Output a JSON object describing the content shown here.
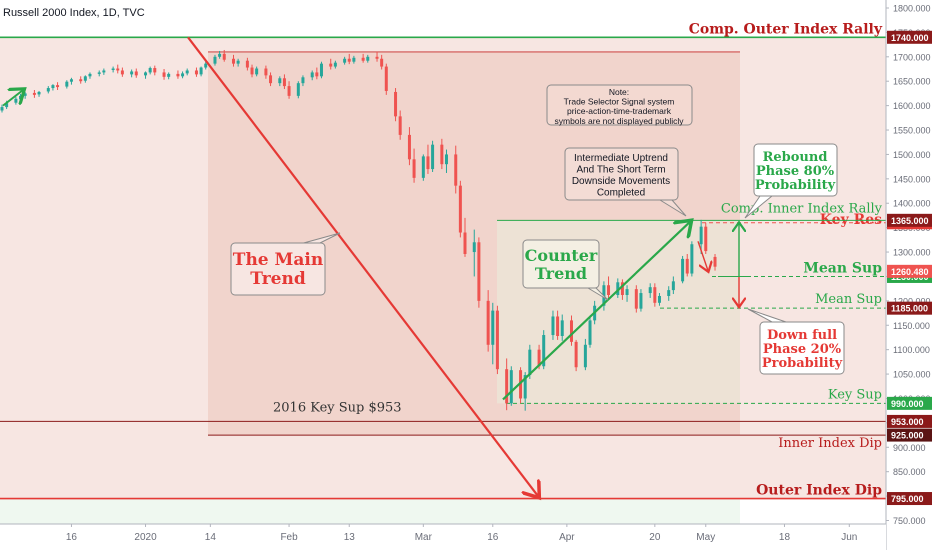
{
  "chart_data": {
    "type": "candlestick",
    "title": "Russell 2000 Index, 1D, TVC",
    "ylim": [
      731,
      1816
    ],
    "y_ticks": [
      "1800.000",
      "1750.000",
      "1700.000",
      "1650.000",
      "1600.000",
      "1550.000",
      "1500.000",
      "1450.000",
      "1400.000",
      "1350.000",
      "1300.000",
      "1250.000",
      "1200.000",
      "1150.000",
      "1100.000",
      "1050.000",
      "1000.000",
      "950.000",
      "900.000",
      "850.000",
      "800.000",
      "750.000"
    ],
    "y_tick_values": [
      1800,
      1750,
      1700,
      1650,
      1600,
      1550,
      1500,
      1450,
      1400,
      1350,
      1300,
      1250,
      1200,
      1150,
      1100,
      1050,
      1000,
      950,
      900,
      850,
      800,
      750
    ],
    "x_ticks": [
      {
        "label": "16",
        "day": 15
      },
      {
        "label": "2020",
        "day": 31
      },
      {
        "label": "14",
        "day": 45
      },
      {
        "label": "Feb",
        "day": 62
      },
      {
        "label": "13",
        "day": 75
      },
      {
        "label": "Mar",
        "day": 91
      },
      {
        "label": "16",
        "day": 106
      },
      {
        "label": "Apr",
        "day": 122
      },
      {
        "label": "20",
        "day": 141
      },
      {
        "label": "May",
        "day": 152
      },
      {
        "label": "18",
        "day": 169
      },
      {
        "label": "Jun",
        "day": 183
      }
    ],
    "candles": [
      {
        "d": 0,
        "o": 1590,
        "h": 1602,
        "c": 1597,
        "l": 1586
      },
      {
        "d": 1,
        "o": 1597,
        "h": 1610,
        "c": 1605,
        "l": 1593
      },
      {
        "d": 3,
        "o": 1606,
        "h": 1618,
        "c": 1614,
        "l": 1602
      },
      {
        "d": 4,
        "o": 1613,
        "h": 1624,
        "c": 1620,
        "l": 1608
      },
      {
        "d": 5,
        "o": 1620,
        "h": 1628,
        "c": 1625,
        "l": 1614
      },
      {
        "d": 7,
        "o": 1626,
        "h": 1632,
        "c": 1622,
        "l": 1616
      },
      {
        "d": 8,
        "o": 1623,
        "h": 1630,
        "c": 1628,
        "l": 1618
      },
      {
        "d": 10,
        "o": 1629,
        "h": 1640,
        "c": 1636,
        "l": 1625
      },
      {
        "d": 11,
        "o": 1636,
        "h": 1644,
        "c": 1642,
        "l": 1631
      },
      {
        "d": 12,
        "o": 1642,
        "h": 1648,
        "c": 1638,
        "l": 1632
      },
      {
        "d": 14,
        "o": 1639,
        "h": 1652,
        "c": 1649,
        "l": 1635
      },
      {
        "d": 15,
        "o": 1649,
        "h": 1657,
        "c": 1654,
        "l": 1643
      },
      {
        "d": 17,
        "o": 1654,
        "h": 1660,
        "c": 1650,
        "l": 1645
      },
      {
        "d": 18,
        "o": 1651,
        "h": 1662,
        "c": 1660,
        "l": 1647
      },
      {
        "d": 19,
        "o": 1660,
        "h": 1668,
        "c": 1665,
        "l": 1655
      },
      {
        "d": 21,
        "o": 1665,
        "h": 1672,
        "c": 1668,
        "l": 1660
      },
      {
        "d": 22,
        "o": 1668,
        "h": 1676,
        "c": 1672,
        "l": 1663
      },
      {
        "d": 24,
        "o": 1673,
        "h": 1680,
        "c": 1676,
        "l": 1668
      },
      {
        "d": 25,
        "o": 1676,
        "h": 1684,
        "c": 1672,
        "l": 1666
      },
      {
        "d": 26,
        "o": 1672,
        "h": 1678,
        "c": 1664,
        "l": 1659
      },
      {
        "d": 28,
        "o": 1664,
        "h": 1674,
        "c": 1670,
        "l": 1658
      },
      {
        "d": 29,
        "o": 1670,
        "h": 1676,
        "c": 1662,
        "l": 1657
      },
      {
        "d": 31,
        "o": 1662,
        "h": 1670,
        "c": 1668,
        "l": 1655
      },
      {
        "d": 32,
        "o": 1668,
        "h": 1680,
        "c": 1677,
        "l": 1664
      },
      {
        "d": 33,
        "o": 1677,
        "h": 1682,
        "c": 1668,
        "l": 1662
      },
      {
        "d": 35,
        "o": 1668,
        "h": 1675,
        "c": 1659,
        "l": 1653
      },
      {
        "d": 36,
        "o": 1659,
        "h": 1668,
        "c": 1665,
        "l": 1654
      },
      {
        "d": 38,
        "o": 1665,
        "h": 1672,
        "c": 1660,
        "l": 1655
      },
      {
        "d": 39,
        "o": 1660,
        "h": 1670,
        "c": 1666,
        "l": 1656
      },
      {
        "d": 40,
        "o": 1666,
        "h": 1676,
        "c": 1672,
        "l": 1662
      },
      {
        "d": 42,
        "o": 1672,
        "h": 1678,
        "c": 1664,
        "l": 1659
      },
      {
        "d": 43,
        "o": 1664,
        "h": 1680,
        "c": 1678,
        "l": 1660
      },
      {
        "d": 44,
        "o": 1678,
        "h": 1690,
        "c": 1686,
        "l": 1674
      },
      {
        "d": 46,
        "o": 1686,
        "h": 1704,
        "c": 1700,
        "l": 1682
      },
      {
        "d": 47,
        "o": 1700,
        "h": 1712,
        "c": 1706,
        "l": 1696
      },
      {
        "d": 48,
        "o": 1706,
        "h": 1714,
        "c": 1694,
        "l": 1690
      },
      {
        "d": 50,
        "o": 1696,
        "h": 1704,
        "c": 1686,
        "l": 1680
      },
      {
        "d": 51,
        "o": 1686,
        "h": 1696,
        "c": 1692,
        "l": 1680
      },
      {
        "d": 53,
        "o": 1692,
        "h": 1698,
        "c": 1678,
        "l": 1672
      },
      {
        "d": 54,
        "o": 1678,
        "h": 1684,
        "c": 1664,
        "l": 1658
      },
      {
        "d": 55,
        "o": 1664,
        "h": 1680,
        "c": 1676,
        "l": 1660
      },
      {
        "d": 57,
        "o": 1676,
        "h": 1682,
        "c": 1662,
        "l": 1655
      },
      {
        "d": 58,
        "o": 1662,
        "h": 1668,
        "c": 1646,
        "l": 1640
      },
      {
        "d": 60,
        "o": 1646,
        "h": 1660,
        "c": 1656,
        "l": 1640
      },
      {
        "d": 61,
        "o": 1656,
        "h": 1664,
        "c": 1640,
        "l": 1634
      },
      {
        "d": 62,
        "o": 1640,
        "h": 1650,
        "c": 1620,
        "l": 1614
      },
      {
        "d": 64,
        "o": 1620,
        "h": 1650,
        "c": 1646,
        "l": 1615
      },
      {
        "d": 65,
        "o": 1646,
        "h": 1662,
        "c": 1658,
        "l": 1640
      },
      {
        "d": 67,
        "o": 1658,
        "h": 1672,
        "c": 1668,
        "l": 1652
      },
      {
        "d": 68,
        "o": 1668,
        "h": 1678,
        "c": 1660,
        "l": 1654
      },
      {
        "d": 69,
        "o": 1660,
        "h": 1690,
        "c": 1686,
        "l": 1656
      },
      {
        "d": 71,
        "o": 1686,
        "h": 1696,
        "c": 1680,
        "l": 1674
      },
      {
        "d": 72,
        "o": 1680,
        "h": 1692,
        "c": 1688,
        "l": 1676
      },
      {
        "d": 74,
        "o": 1688,
        "h": 1700,
        "c": 1696,
        "l": 1684
      },
      {
        "d": 75,
        "o": 1696,
        "h": 1706,
        "c": 1690,
        "l": 1685
      },
      {
        "d": 76,
        "o": 1690,
        "h": 1702,
        "c": 1698,
        "l": 1686
      },
      {
        "d": 78,
        "o": 1698,
        "h": 1706,
        "c": 1692,
        "l": 1688
      },
      {
        "d": 79,
        "o": 1692,
        "h": 1704,
        "c": 1700,
        "l": 1688
      },
      {
        "d": 81,
        "o": 1700,
        "h": 1710,
        "c": 1696,
        "l": 1690
      },
      {
        "d": 82,
        "o": 1696,
        "h": 1704,
        "c": 1680,
        "l": 1674
      },
      {
        "d": 83,
        "o": 1680,
        "h": 1686,
        "c": 1630,
        "l": 1622
      },
      {
        "d": 85,
        "o": 1628,
        "h": 1636,
        "c": 1578,
        "l": 1568
      },
      {
        "d": 86,
        "o": 1578,
        "h": 1590,
        "c": 1540,
        "l": 1530
      },
      {
        "d": 88,
        "o": 1540,
        "h": 1556,
        "c": 1490,
        "l": 1478
      },
      {
        "d": 89,
        "o": 1490,
        "h": 1512,
        "c": 1452,
        "l": 1442
      },
      {
        "d": 91,
        "o": 1452,
        "h": 1500,
        "c": 1496,
        "l": 1446
      },
      {
        "d": 92,
        "o": 1496,
        "h": 1520,
        "c": 1470,
        "l": 1460
      },
      {
        "d": 93,
        "o": 1470,
        "h": 1528,
        "c": 1520,
        "l": 1464
      },
      {
        "d": 95,
        "o": 1520,
        "h": 1532,
        "c": 1480,
        "l": 1470
      },
      {
        "d": 96,
        "o": 1480,
        "h": 1510,
        "c": 1500,
        "l": 1462
      },
      {
        "d": 98,
        "o": 1500,
        "h": 1518,
        "c": 1436,
        "l": 1420
      },
      {
        "d": 99,
        "o": 1436,
        "h": 1446,
        "c": 1340,
        "l": 1330
      },
      {
        "d": 100,
        "o": 1340,
        "h": 1370,
        "c": 1296,
        "l": 1290
      },
      {
        "d": 102,
        "o": 1300,
        "h": 1346,
        "c": 1320,
        "l": 1250
      },
      {
        "d": 103,
        "o": 1320,
        "h": 1330,
        "c": 1200,
        "l": 1186
      },
      {
        "d": 105,
        "o": 1200,
        "h": 1222,
        "c": 1110,
        "l": 1096
      },
      {
        "d": 106,
        "o": 1110,
        "h": 1196,
        "c": 1180,
        "l": 1070
      },
      {
        "d": 107,
        "o": 1180,
        "h": 1190,
        "c": 1060,
        "l": 1050
      },
      {
        "d": 109,
        "o": 1060,
        "h": 1082,
        "c": 990,
        "l": 976
      },
      {
        "d": 110,
        "o": 990,
        "h": 1066,
        "c": 1058,
        "l": 985
      },
      {
        "d": 112,
        "o": 1058,
        "h": 1064,
        "c": 1000,
        "l": 990
      },
      {
        "d": 113,
        "o": 1000,
        "h": 1054,
        "c": 1048,
        "l": 975
      },
      {
        "d": 114,
        "o": 1048,
        "h": 1110,
        "c": 1100,
        "l": 1040
      },
      {
        "d": 116,
        "o": 1100,
        "h": 1110,
        "c": 1066,
        "l": 1060
      },
      {
        "d": 117,
        "o": 1066,
        "h": 1140,
        "c": 1130,
        "l": 1060
      },
      {
        "d": 119,
        "o": 1130,
        "h": 1180,
        "c": 1168,
        "l": 1120
      },
      {
        "d": 120,
        "o": 1168,
        "h": 1180,
        "c": 1128,
        "l": 1120
      },
      {
        "d": 121,
        "o": 1128,
        "h": 1172,
        "c": 1160,
        "l": 1118
      },
      {
        "d": 123,
        "o": 1160,
        "h": 1170,
        "c": 1116,
        "l": 1108
      },
      {
        "d": 124,
        "o": 1116,
        "h": 1120,
        "c": 1064,
        "l": 1056
      },
      {
        "d": 126,
        "o": 1064,
        "h": 1122,
        "c": 1110,
        "l": 1058
      },
      {
        "d": 127,
        "o": 1110,
        "h": 1170,
        "c": 1160,
        "l": 1104
      },
      {
        "d": 128,
        "o": 1160,
        "h": 1200,
        "c": 1190,
        "l": 1152
      },
      {
        "d": 130,
        "o": 1190,
        "h": 1240,
        "c": 1232,
        "l": 1180
      },
      {
        "d": 131,
        "o": 1232,
        "h": 1250,
        "c": 1212,
        "l": 1204
      },
      {
        "d": 133,
        "o": 1212,
        "h": 1246,
        "c": 1238,
        "l": 1206
      },
      {
        "d": 134,
        "o": 1238,
        "h": 1244,
        "c": 1212,
        "l": 1202
      },
      {
        "d": 135,
        "o": 1212,
        "h": 1232,
        "c": 1224,
        "l": 1198
      },
      {
        "d": 137,
        "o": 1224,
        "h": 1232,
        "c": 1184,
        "l": 1176
      },
      {
        "d": 138,
        "o": 1184,
        "h": 1224,
        "c": 1216,
        "l": 1178
      },
      {
        "d": 140,
        "o": 1216,
        "h": 1236,
        "c": 1228,
        "l": 1206
      },
      {
        "d": 141,
        "o": 1228,
        "h": 1236,
        "c": 1196,
        "l": 1188
      },
      {
        "d": 142,
        "o": 1196,
        "h": 1216,
        "c": 1210,
        "l": 1190
      },
      {
        "d": 144,
        "o": 1210,
        "h": 1230,
        "c": 1222,
        "l": 1200
      },
      {
        "d": 145,
        "o": 1222,
        "h": 1250,
        "c": 1240,
        "l": 1214
      },
      {
        "d": 147,
        "o": 1240,
        "h": 1292,
        "c": 1286,
        "l": 1236
      },
      {
        "d": 148,
        "o": 1286,
        "h": 1296,
        "c": 1256,
        "l": 1250
      },
      {
        "d": 149,
        "o": 1256,
        "h": 1322,
        "c": 1316,
        "l": 1250
      },
      {
        "d": 151,
        "o": 1316,
        "h": 1366,
        "c": 1352,
        "l": 1296
      },
      {
        "d": 152,
        "o": 1352,
        "h": 1360,
        "c": 1302,
        "l": 1296
      },
      {
        "d": 154,
        "o": 1290,
        "h": 1296,
        "c": 1270,
        "l": 1262
      }
    ],
    "levels": [
      {
        "name": "comp-outer-index-rally",
        "label": "Comp. Outer Index Rally",
        "price": "1740.000",
        "value": 1740,
        "color": "#2aa84a",
        "style": "solid",
        "width": 1.6,
        "labelColor": "#b71c1c",
        "bold": true,
        "labelSize": 14
      },
      {
        "name": "key-res",
        "label": "Key Res",
        "price": "1360.000",
        "value": 1360,
        "color": "#ef5350",
        "style": "dashed",
        "width": 1,
        "labelColor": "#e53935",
        "bold": true,
        "labelSize": 14
      },
      {
        "name": "comp-inner-index-rally",
        "label": "Comp. Inner Index Rally",
        "price": "1365.000",
        "value": 1365,
        "color": "#2aa84a",
        "style": "solid",
        "width": 1,
        "labelColor": "#2aa84a",
        "bold": false,
        "labelSize": 13
      },
      {
        "name": "mean-sup-1250",
        "label": "Mean Sup",
        "price": "1250.000",
        "value": 1250,
        "color": "#2aa84a",
        "style": "dashed",
        "width": 1,
        "labelColor": "#2aa84a",
        "bold": true,
        "labelSize": 14
      },
      {
        "name": "mean-sup-1185",
        "label": "Mean Sup",
        "price": "1185.000",
        "value": 1185,
        "color": "#2aa84a",
        "style": "dashed",
        "width": 1,
        "labelColor": "#2aa84a",
        "bold": false,
        "labelSize": 13
      },
      {
        "name": "key-sup",
        "label": "Key Sup",
        "price": "990.000",
        "value": 990,
        "color": "#2aa84a",
        "style": "dashed",
        "width": 1,
        "labelColor": "#2aa84a",
        "bold": false,
        "labelSize": 13
      },
      {
        "name": "key-sup-953",
        "label": "",
        "price": "953.000",
        "value": 953,
        "color": "#8b1a1a",
        "style": "solid",
        "width": 1,
        "labelColor": "#8b1a1a",
        "bold": false,
        "labelSize": 13
      },
      {
        "name": "inner-index-dip",
        "label": "Inner Index Dip",
        "price": "925.000",
        "value": 925,
        "color": "#8b1a1a",
        "style": "solid",
        "width": 1,
        "labelColor": "#b71c1c",
        "bold": false,
        "labelSize": 13
      },
      {
        "name": "outer-index-dip",
        "label": "Outer Index Dip",
        "price": "795.000",
        "value": 795,
        "color": "#e53935",
        "style": "solid",
        "width": 1.6,
        "labelColor": "#b71c1c",
        "bold": true,
        "labelSize": 14
      }
    ],
    "current_price": {
      "price": "1260.480",
      "value": 1260.48
    },
    "annotations": {
      "main_trend": "The Main\nTrend",
      "counter_trend": "Counter\nTrend",
      "note": "Note:\nTrade Selector Signal system\nprice-action-time-trademark\nsymbols are not displayed publicly",
      "intermediate": "Intermediate Uptrend\nAnd The Short Term\nDownside Movements\nCompleted",
      "rebound": "Rebound\nPhase 80%\nProbability",
      "down_full": "Down full\nPhase 20%\nProbability",
      "key_sup_2016": "2016 Key Sup $953"
    },
    "colors": {
      "up": "#26a69a",
      "down": "#ef5350",
      "trend": "#e53935",
      "counter": "#2aa84a"
    }
  }
}
